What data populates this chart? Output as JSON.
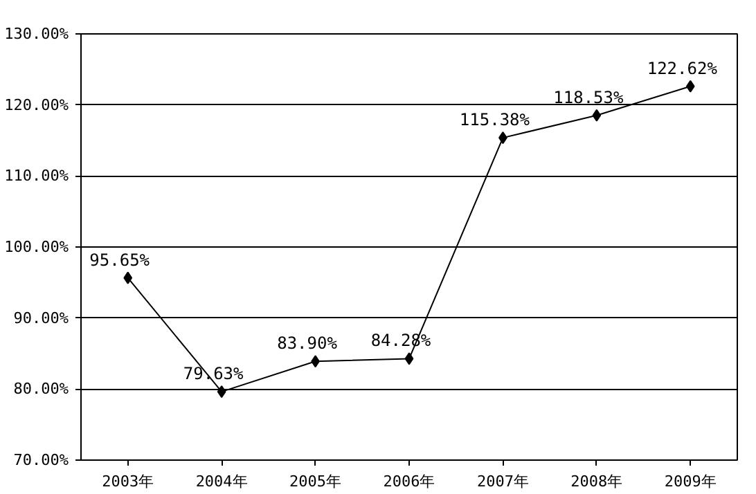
{
  "chart_data": {
    "type": "line",
    "categories": [
      "2003年",
      "2004年",
      "2005年",
      "2006年",
      "2007年",
      "2008年",
      "2009年"
    ],
    "series": [
      {
        "color": "#000000",
        "values": [
          95.65,
          79.63,
          83.9,
          84.28,
          115.38,
          118.53,
          122.62
        ],
        "value_labels": [
          "95.65%",
          "79.63%",
          "83.90%",
          "84.28%",
          "115.38%",
          "118.53%",
          "122.62%"
        ]
      }
    ],
    "ylim": [
      70,
      130
    ],
    "yticks": [
      {
        "value": 70,
        "label": "70.00%"
      },
      {
        "value": 80,
        "label": "80.00%"
      },
      {
        "value": 90,
        "label": "90.00%"
      },
      {
        "value": 100,
        "label": "100.00%"
      },
      {
        "value": 110,
        "label": "110.00%"
      },
      {
        "value": 120,
        "label": "120.00%"
      },
      {
        "value": 130,
        "label": "130.00%"
      }
    ],
    "grid": "y",
    "marker": "diamond",
    "line_style": "solid"
  }
}
